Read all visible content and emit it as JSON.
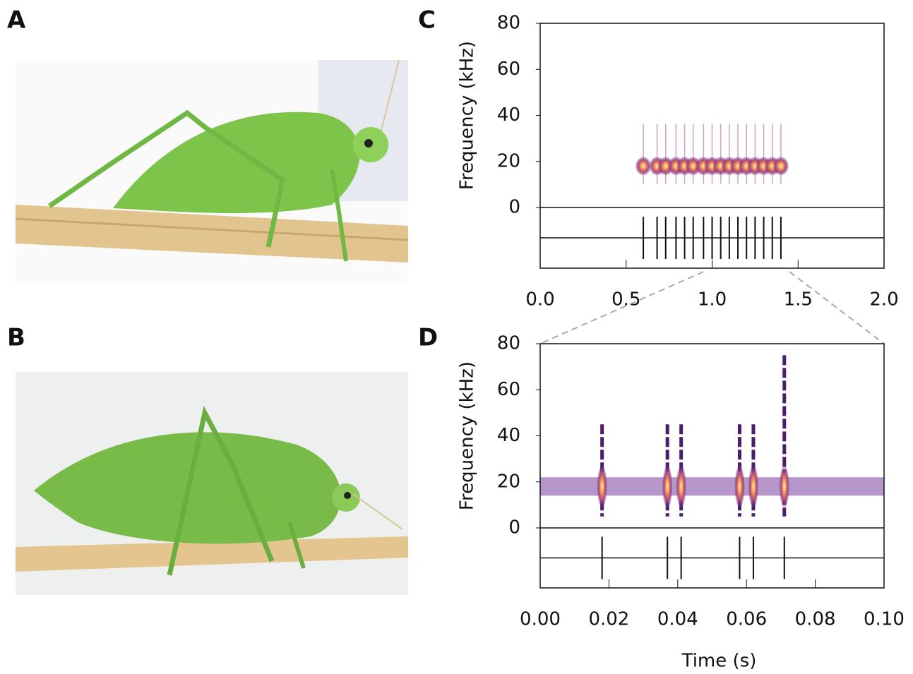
{
  "panels": [
    {
      "label": "A"
    },
    {
      "label": "B"
    },
    {
      "label": "C"
    },
    {
      "label": "D"
    }
  ],
  "chart_data": [
    {
      "type": "spectrogram",
      "ylabel": "Frequency (kHz)",
      "xlim": [
        0,
        2
      ],
      "xticks": [
        {
          "value": 0,
          "label": "0.0"
        },
        {
          "value": 0.5,
          "label": "0.5"
        },
        {
          "value": 1,
          "label": "1.0"
        },
        {
          "value": 1.5,
          "label": "1.5"
        },
        {
          "value": 2,
          "label": "2.0"
        }
      ],
      "ylim": [
        0,
        80
      ],
      "yticks": [
        0,
        20,
        40,
        60,
        80
      ],
      "x": [
        0.6,
        0.68,
        0.73,
        0.79,
        0.84,
        0.89,
        0.95,
        1.0,
        1.05,
        1.1,
        1.15,
        1.2,
        1.25,
        1.3,
        1.35,
        1.4
      ],
      "values": [
        18,
        18,
        18,
        18,
        18,
        18,
        18,
        18,
        18,
        18,
        18,
        18,
        18,
        18,
        18,
        18
      ],
      "zoom_xlim": [
        0.95,
        1.45
      ]
    },
    {
      "type": "spectrogram",
      "ylabel": "Frequency (kHz)",
      "xlabel": "Time (s)",
      "xlim": [
        0,
        0.1
      ],
      "xticks": [
        {
          "value": 0,
          "label": "0.00"
        },
        {
          "value": 0.02,
          "label": "0.02"
        },
        {
          "value": 0.04,
          "label": "0.04"
        },
        {
          "value": 0.06,
          "label": "0.06"
        },
        {
          "value": 0.08,
          "label": "0.08"
        },
        {
          "value": 0.1,
          "label": "0.10"
        }
      ],
      "ylim": [
        0,
        80
      ],
      "yticks": [
        0,
        20,
        40,
        60,
        80
      ],
      "x": [
        0.018,
        0.037,
        0.041,
        0.058,
        0.062,
        0.071
      ],
      "values": [
        18,
        18,
        18,
        18,
        18,
        18
      ],
      "max_frequency": [
        45,
        45,
        45,
        45,
        45,
        75
      ]
    }
  ]
}
